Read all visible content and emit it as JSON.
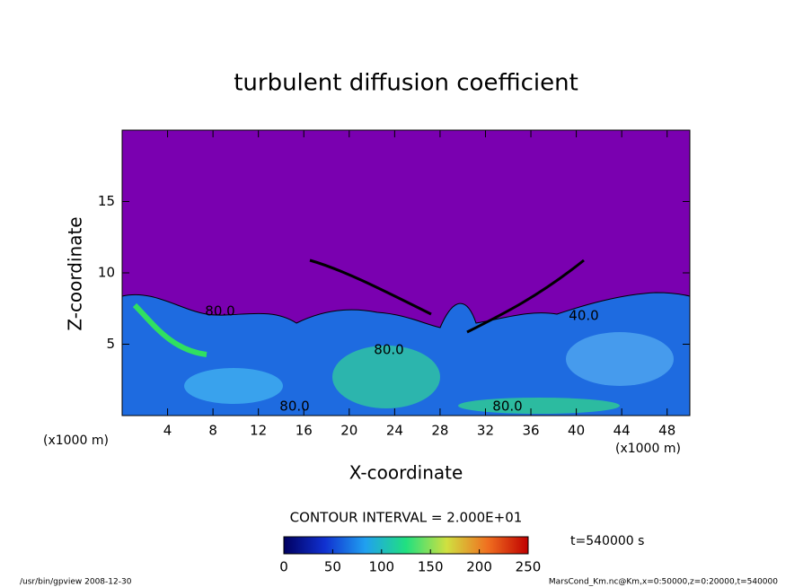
{
  "chart_data": {
    "type": "contour",
    "title": "turbulent diffusion coefficient",
    "xlabel": "X-coordinate",
    "ylabel": "Z-coordinate",
    "x_unit": "(x1000 m)",
    "xlim": [
      0,
      50
    ],
    "xticks": [
      4,
      8,
      12,
      16,
      20,
      24,
      28,
      32,
      36,
      40,
      44,
      48
    ],
    "ylim": [
      0,
      20
    ],
    "yticks": [
      5,
      10,
      15
    ],
    "contour_labels": [
      "80.0",
      "80.0",
      "80.0",
      "80.0",
      "40.0"
    ],
    "contour_interval": "CONTOUR INTERVAL = 2.000E+01",
    "time_label": "t=540000 s",
    "colorbar": {
      "lim": [
        0,
        250
      ],
      "ticks": [
        0,
        50,
        100,
        150,
        200,
        250
      ],
      "colors": [
        "#000060",
        "#1030d0",
        "#20a0f0",
        "#20e080",
        "#d0e040",
        "#f07020",
        "#c00000"
      ]
    },
    "footer_left": "/usr/bin/gpview   2008-12-30",
    "footer_right": "MarsCond_Km.nc@Km,x=0:50000,z=0:20000,t=540000"
  }
}
